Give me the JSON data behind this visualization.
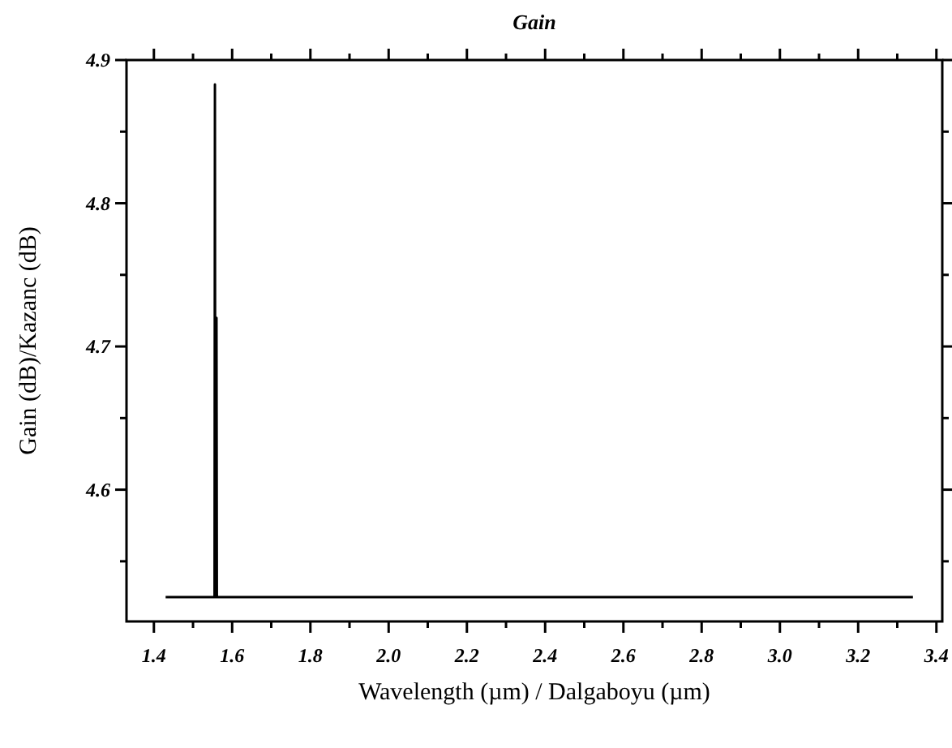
{
  "chart_data": {
    "type": "line",
    "title": "Gain",
    "xlabel": "Wavelength (µm) / Dalgaboyu (µm)",
    "ylabel": "Gain (dB)/Kazanc (dB)",
    "x": [
      1.43,
      1.555,
      1.556,
      1.557,
      1.558,
      1.559,
      1.56,
      1.561,
      3.34
    ],
    "series": [
      {
        "color": "#000000",
        "values": [
          4.525,
          4.525,
          4.883,
          4.525,
          4.72,
          4.525,
          4.72,
          4.525,
          4.525
        ]
      }
    ],
    "xlim": [
      1.33,
      3.415
    ],
    "ylim": [
      4.508,
      4.9
    ],
    "xticks": [
      1.4,
      {
        "value": 1.5,
        "label": null
      },
      1.6,
      {
        "value": 1.7,
        "label": null
      },
      1.8,
      {
        "value": 1.9,
        "label": null
      },
      {
        "value": 2,
        "label": "2.0"
      },
      {
        "value": 2.1,
        "label": null
      },
      2.2,
      {
        "value": 2.3,
        "label": null
      },
      2.4,
      {
        "value": 2.5,
        "label": null
      },
      2.6,
      {
        "value": 2.7,
        "label": null
      },
      2.8,
      {
        "value": 2.9,
        "label": null
      },
      {
        "value": 3,
        "label": "3.0"
      },
      {
        "value": 3.1,
        "label": null
      },
      3.2,
      {
        "value": 3.3,
        "label": null
      },
      3.4
    ],
    "yticks": [
      {
        "value": 4.55,
        "label": null
      },
      4.6,
      {
        "value": 4.65,
        "label": null
      },
      4.7,
      {
        "value": 4.75,
        "label": null
      },
      4.8,
      {
        "value": 4.85,
        "label": null
      },
      4.9
    ],
    "grid": false,
    "marker": "none",
    "line_style": "solid"
  }
}
